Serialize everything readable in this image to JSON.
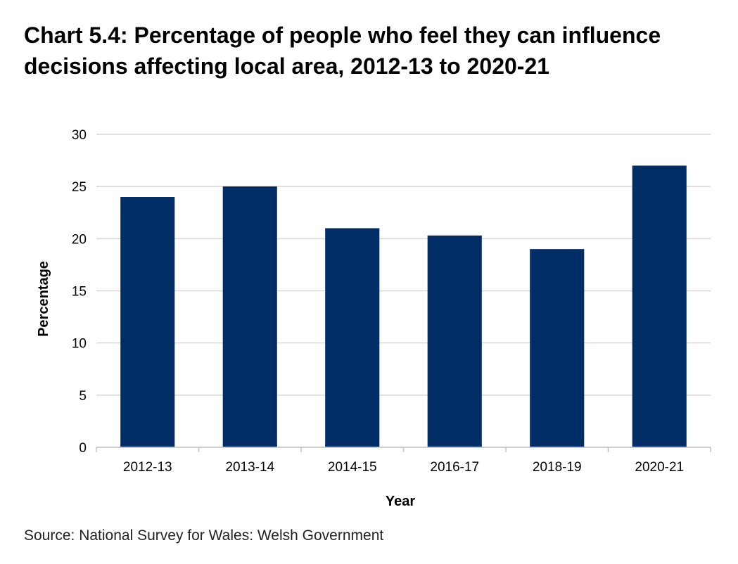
{
  "source_note": "Source: National Survey for Wales: Welsh Government",
  "colors": {
    "bar": "#002D66",
    "gridline": "#D9D9D9",
    "axis": "#BFBFBF",
    "text": "#000000"
  },
  "chart_data": {
    "type": "bar",
    "title": "Chart 5.4: Percentage of people who feel they can influence decisions affecting local area, 2012-13 to 2020-21",
    "xlabel": "Year",
    "ylabel": "Percentage",
    "categories": [
      "2012-13",
      "2013-14",
      "2014-15",
      "2016-17",
      "2018-19",
      "2020-21"
    ],
    "values": [
      24,
      25,
      21,
      20.3,
      19,
      27
    ],
    "ylim": [
      0,
      30
    ],
    "yticks": [
      0,
      5,
      10,
      15,
      20,
      25,
      30
    ],
    "grid": true,
    "legend": "none"
  }
}
